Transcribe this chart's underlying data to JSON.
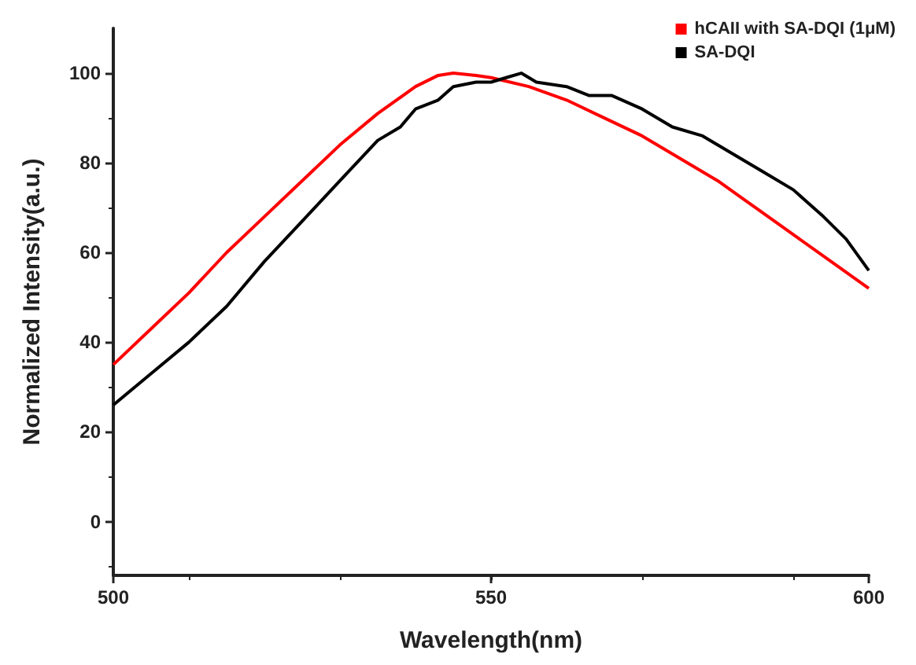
{
  "chart_data": {
    "type": "line",
    "xlabel": "Wavelength(nm)",
    "ylabel": "Normalized Intensity(a.u.)",
    "xlim": [
      500,
      600
    ],
    "xticks": [
      500,
      550,
      600
    ],
    "ylim": [
      -12,
      110
    ],
    "yticks": [
      0,
      20,
      40,
      60,
      80,
      100
    ],
    "grid": false,
    "legend": "top right",
    "marker": "none",
    "line_style": "solid",
    "series": [
      {
        "name": "hCAII with SA-DQI (1μM)",
        "color": "#ff0000",
        "x": [
          500,
          505,
          510,
          515,
          520,
          525,
          530,
          535,
          540,
          543,
          545,
          548,
          550,
          555,
          560,
          565,
          570,
          575,
          580,
          585,
          590,
          595,
          600
        ],
        "values": [
          35,
          43,
          51,
          60,
          68,
          76,
          84,
          91,
          97,
          99.5,
          100,
          99.5,
          99,
          97,
          94,
          90,
          86,
          81,
          76,
          70,
          64,
          58,
          52
        ]
      },
      {
        "name": "SA-DQI",
        "color": "#000000",
        "x": [
          500,
          505,
          510,
          515,
          520,
          525,
          530,
          535,
          538,
          540,
          543,
          545,
          548,
          550,
          552,
          554,
          556,
          560,
          563,
          566,
          570,
          574,
          578,
          582,
          586,
          590,
          594,
          597,
          600
        ],
        "values": [
          26,
          33,
          40,
          48,
          58,
          67,
          76,
          85,
          88,
          92,
          94,
          97,
          98,
          98,
          99,
          100,
          98,
          97,
          95,
          95,
          92,
          88,
          86,
          82,
          78,
          74,
          68,
          63,
          56
        ]
      }
    ]
  }
}
